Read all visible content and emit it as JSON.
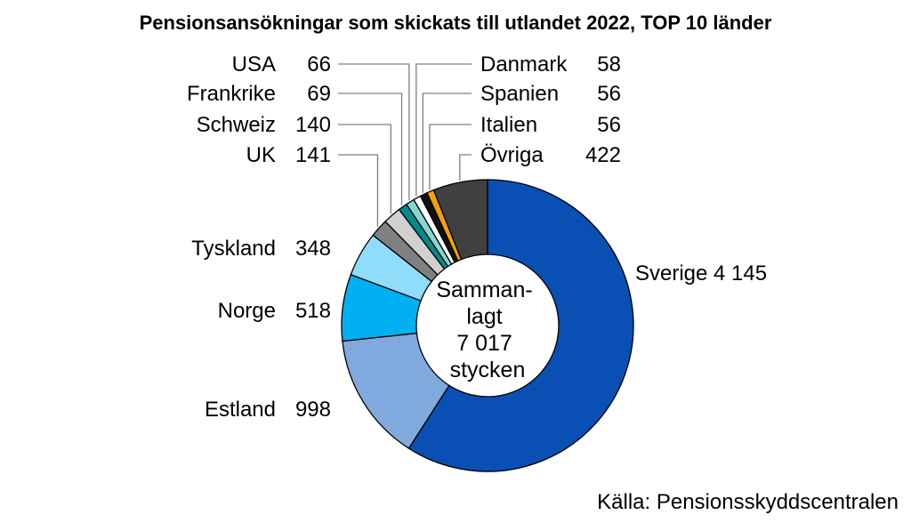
{
  "chart_data": {
    "type": "pie",
    "title": "Pensionsansökningar som skickats till utlandet 2022, TOP 10 länder",
    "center_label": [
      "Samman-",
      "lagt",
      "7 017",
      "stycken"
    ],
    "source": "Källa: Pensionsskyddscentralen",
    "slices": [
      {
        "name": "Sverige",
        "value": 4145,
        "value_label": "4 145",
        "color": "#0a4fb4"
      },
      {
        "name": "Estland",
        "value": 998,
        "value_label": "998",
        "color": "#80aadd"
      },
      {
        "name": "Norge",
        "value": 518,
        "value_label": "518",
        "color": "#00b0f0"
      },
      {
        "name": "Tyskland",
        "value": 348,
        "value_label": "348",
        "color": "#8fdcfb"
      },
      {
        "name": "UK",
        "value": 141,
        "value_label": "141",
        "color": "#808080"
      },
      {
        "name": "Schweiz",
        "value": 140,
        "value_label": "140",
        "color": "#d0d0d0"
      },
      {
        "name": "Frankrike",
        "value": 69,
        "value_label": "69",
        "color": "#008b8b"
      },
      {
        "name": "USA",
        "value": 66,
        "value_label": "66",
        "color": "#88d6d0"
      },
      {
        "name": "Danmark",
        "value": 58,
        "value_label": "58",
        "color": "#ffffff"
      },
      {
        "name": "Spanien",
        "value": 56,
        "value_label": "56",
        "color": "#111111"
      },
      {
        "name": "Italien",
        "value": 56,
        "value_label": "56",
        "color": "#f5a00a"
      },
      {
        "name": "Övriga",
        "value": 422,
        "value_label": "422",
        "color": "#404040"
      }
    ]
  }
}
